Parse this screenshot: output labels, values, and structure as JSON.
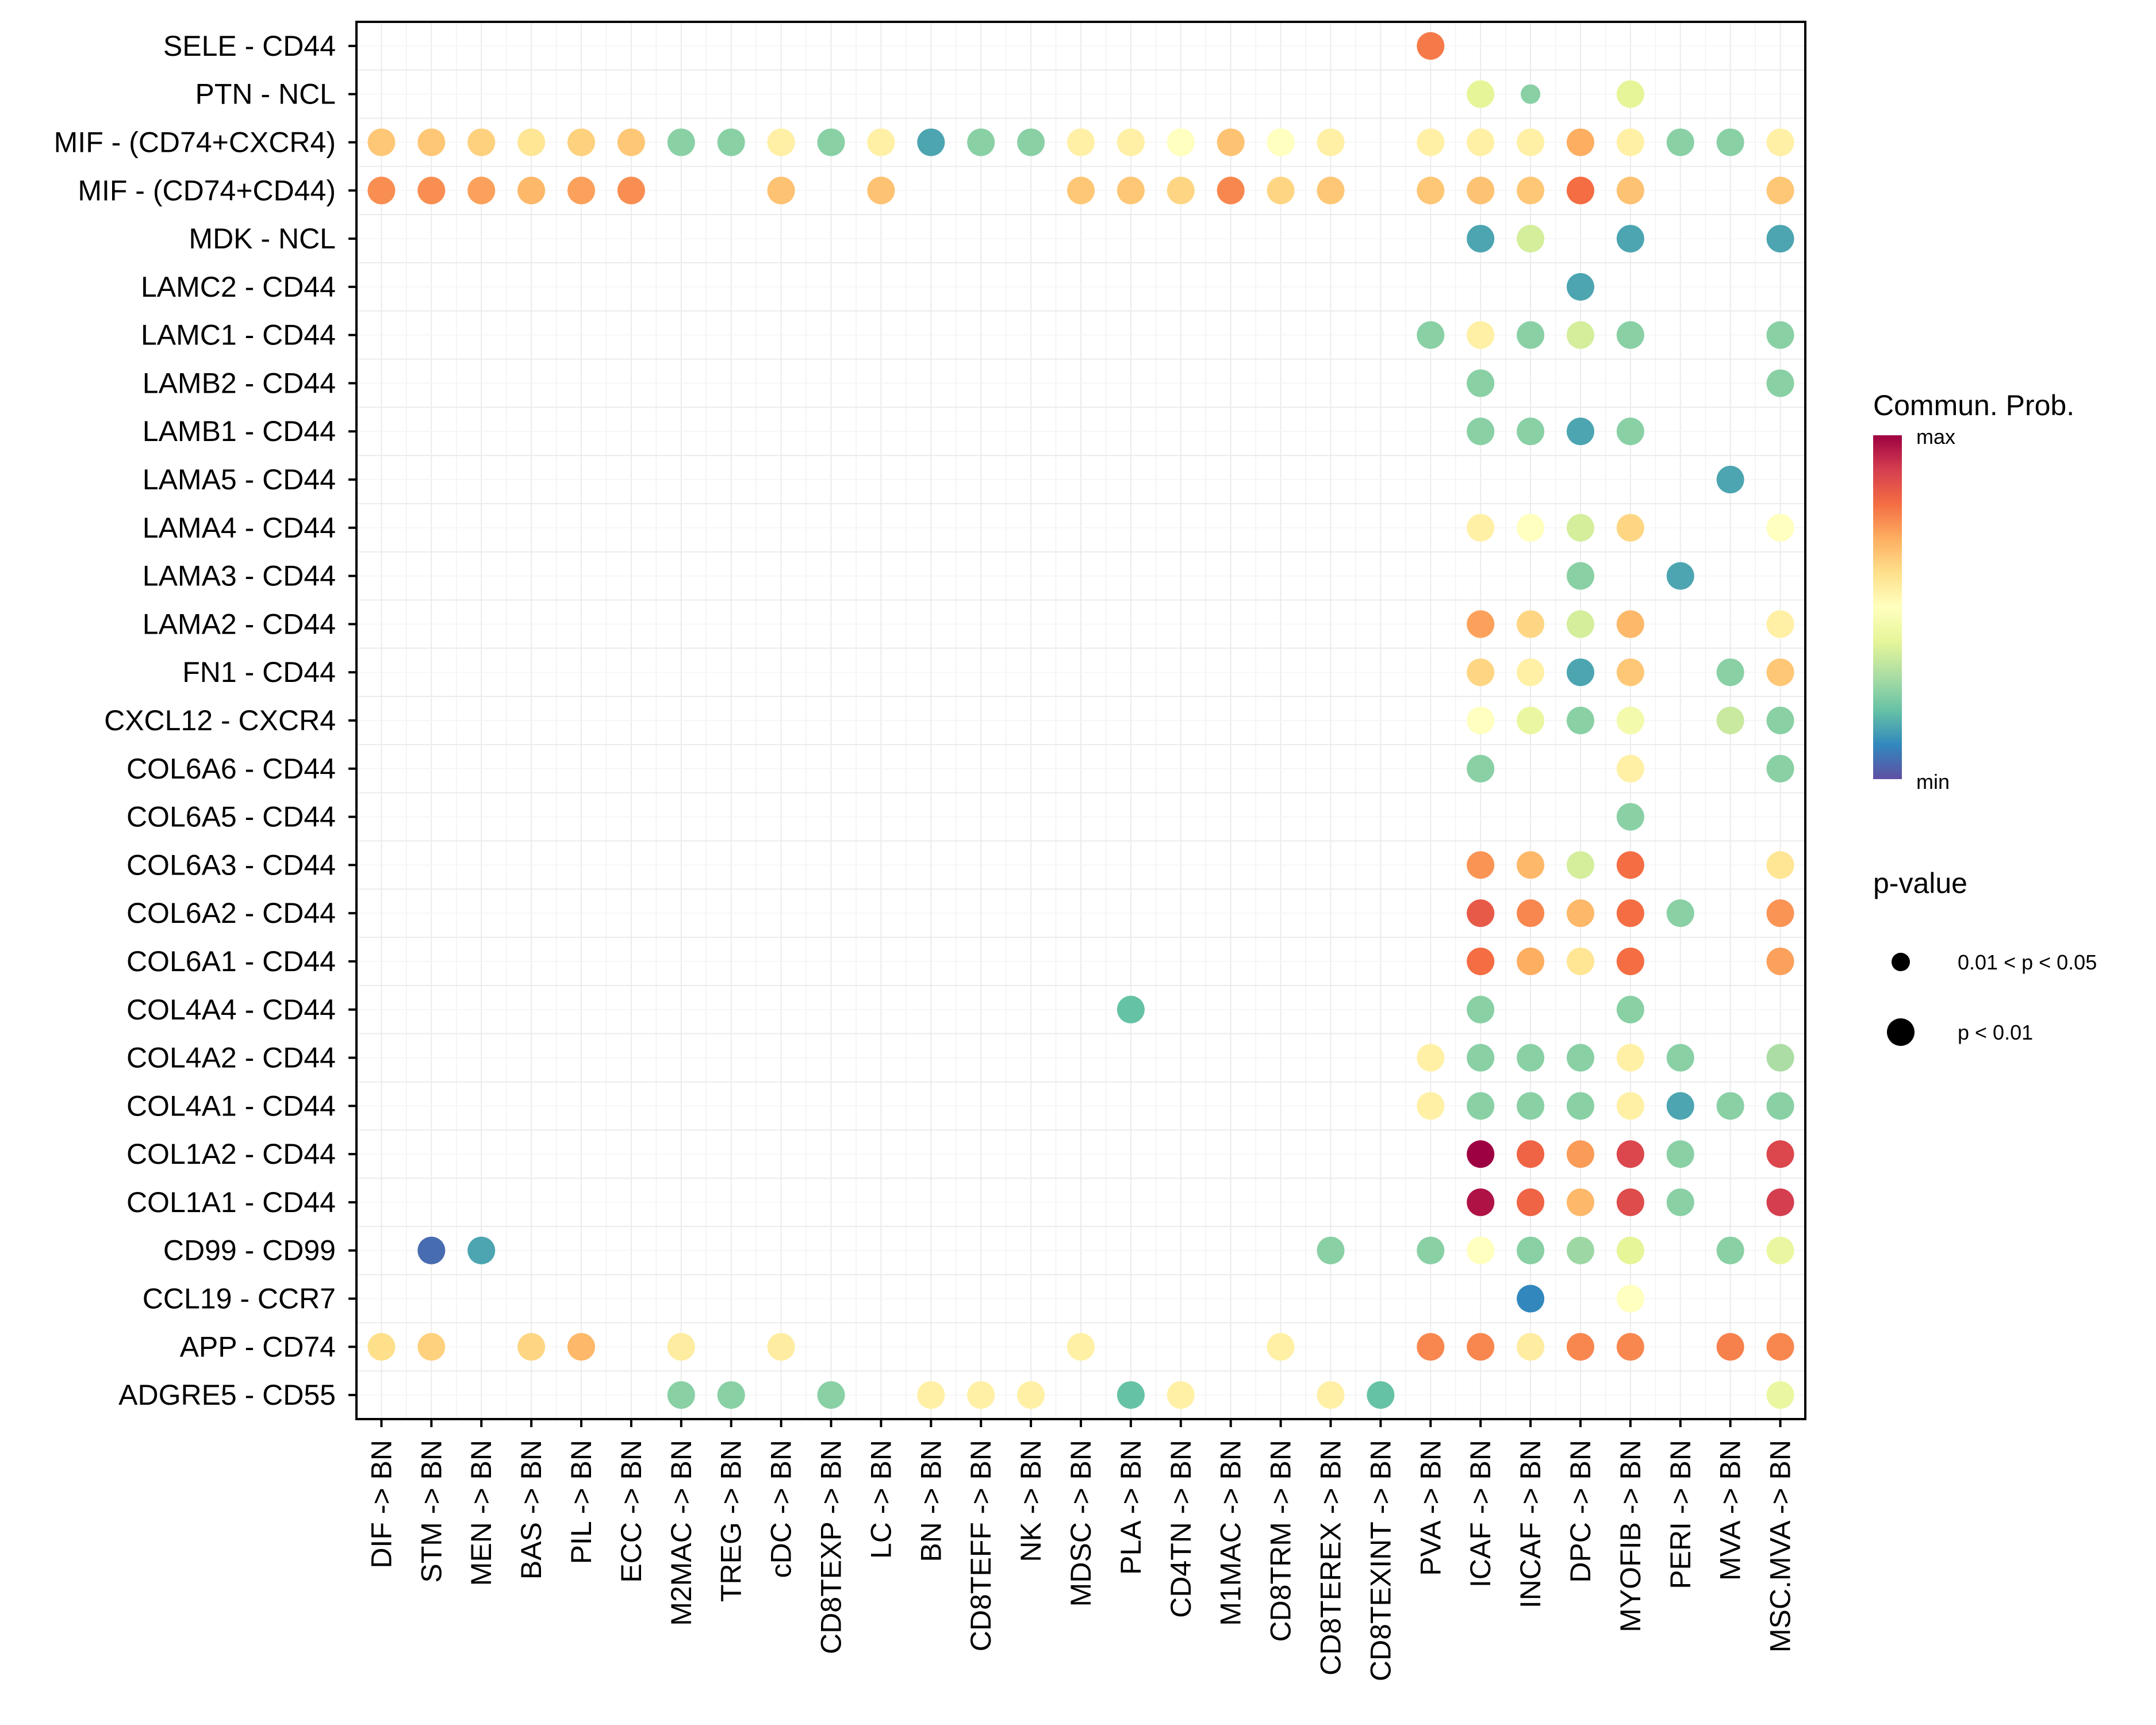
{
  "chart_data": {
    "type": "scatter",
    "subtype": "dot-plot",
    "title": "",
    "xlabel": "",
    "ylabel": "",
    "grid": true,
    "legend_position": "right",
    "x_categories": [
      "DIF -> BN",
      "STM -> BN",
      "MEN -> BN",
      "BAS -> BN",
      "PIL -> BN",
      "ECC -> BN",
      "M2MAC -> BN",
      "TREG -> BN",
      "cDC -> BN",
      "CD8TEXP -> BN",
      "LC -> BN",
      "BN -> BN",
      "CD8TEFF -> BN",
      "NK -> BN",
      "MDSC -> BN",
      "PLA -> BN",
      "CD4TN -> BN",
      "M1MAC -> BN",
      "CD8TRM -> BN",
      "CD8TEREX -> BN",
      "CD8TEXINT -> BN",
      "PVA -> BN",
      "ICAF -> BN",
      "INCAF -> BN",
      "DPC -> BN",
      "MYOFIB -> BN",
      "PERI -> BN",
      "MVA -> BN",
      "MSC.MVA -> BN"
    ],
    "y_categories": [
      "SELE - CD44",
      "PTN - NCL",
      "MIF - (CD74+CXCR4)",
      "MIF - (CD74+CD44)",
      "MDK - NCL",
      "LAMC2 - CD44",
      "LAMC1 - CD44",
      "LAMB2 - CD44",
      "LAMB1 - CD44",
      "LAMA5 - CD44",
      "LAMA4 - CD44",
      "LAMA3 - CD44",
      "LAMA2 - CD44",
      "FN1 - CD44",
      "CXCL12 - CXCR4",
      "COL6A6 - CD44",
      "COL6A5 - CD44",
      "COL6A3 - CD44",
      "COL6A2 - CD44",
      "COL6A1 - CD44",
      "COL4A4 - CD44",
      "COL4A2 - CD44",
      "COL4A1 - CD44",
      "COL1A2 - CD44",
      "COL1A1 - CD44",
      "CD99 - CD99",
      "CCL19 - CCR7",
      "APP - CD74",
      "ADGRE5 - CD55"
    ],
    "value_scale": "normalized communication probability, 0 = min, 1 = max",
    "values": [
      [
        null,
        null,
        null,
        null,
        null,
        null,
        null,
        null,
        null,
        null,
        null,
        null,
        null,
        null,
        null,
        null,
        null,
        null,
        null,
        null,
        null,
        0.78,
        null,
        null,
        null,
        null,
        null,
        null,
        null
      ],
      [
        null,
        null,
        null,
        null,
        null,
        null,
        null,
        null,
        null,
        null,
        null,
        null,
        null,
        null,
        null,
        null,
        null,
        null,
        null,
        null,
        null,
        null,
        0.4,
        0.25,
        null,
        0.4,
        null,
        null,
        null
      ],
      [
        0.65,
        0.65,
        0.63,
        0.58,
        0.63,
        0.65,
        0.25,
        0.25,
        0.55,
        0.25,
        0.55,
        0.15,
        0.25,
        0.25,
        0.55,
        0.55,
        0.5,
        0.66,
        0.5,
        0.55,
        null,
        0.55,
        0.55,
        0.55,
        0.7,
        0.55,
        0.25,
        0.25,
        0.55
      ],
      [
        0.75,
        0.75,
        0.72,
        0.68,
        0.72,
        0.75,
        null,
        null,
        0.66,
        null,
        0.66,
        null,
        null,
        null,
        0.65,
        0.65,
        0.62,
        0.76,
        0.62,
        0.65,
        null,
        0.65,
        0.66,
        0.65,
        0.8,
        0.66,
        null,
        null,
        0.65
      ],
      [
        null,
        null,
        null,
        null,
        null,
        null,
        null,
        null,
        null,
        null,
        null,
        null,
        null,
        null,
        null,
        null,
        null,
        null,
        null,
        null,
        null,
        null,
        0.15,
        0.37,
        null,
        0.15,
        null,
        null,
        0.15
      ],
      [
        null,
        null,
        null,
        null,
        null,
        null,
        null,
        null,
        null,
        null,
        null,
        null,
        null,
        null,
        null,
        null,
        null,
        null,
        null,
        null,
        null,
        null,
        null,
        null,
        0.15,
        null,
        null,
        null,
        null
      ],
      [
        null,
        null,
        null,
        null,
        null,
        null,
        null,
        null,
        null,
        null,
        null,
        null,
        null,
        null,
        null,
        null,
        null,
        null,
        null,
        null,
        null,
        0.25,
        0.55,
        0.25,
        0.37,
        0.25,
        null,
        null,
        0.25
      ],
      [
        null,
        null,
        null,
        null,
        null,
        null,
        null,
        null,
        null,
        null,
        null,
        null,
        null,
        null,
        null,
        null,
        null,
        null,
        null,
        null,
        null,
        null,
        0.25,
        null,
        null,
        null,
        null,
        null,
        0.25
      ],
      [
        null,
        null,
        null,
        null,
        null,
        null,
        null,
        null,
        null,
        null,
        null,
        null,
        null,
        null,
        null,
        null,
        null,
        null,
        null,
        null,
        null,
        null,
        0.25,
        0.25,
        0.15,
        0.25,
        null,
        null,
        null
      ],
      [
        null,
        null,
        null,
        null,
        null,
        null,
        null,
        null,
        null,
        null,
        null,
        null,
        null,
        null,
        null,
        null,
        null,
        null,
        null,
        null,
        null,
        null,
        null,
        null,
        null,
        null,
        null,
        0.15,
        null
      ],
      [
        null,
        null,
        null,
        null,
        null,
        null,
        null,
        null,
        null,
        null,
        null,
        null,
        null,
        null,
        null,
        null,
        null,
        null,
        null,
        null,
        null,
        null,
        0.55,
        0.5,
        0.37,
        0.62,
        null,
        null,
        0.5
      ],
      [
        null,
        null,
        null,
        null,
        null,
        null,
        null,
        null,
        null,
        null,
        null,
        null,
        null,
        null,
        null,
        null,
        null,
        null,
        null,
        null,
        null,
        null,
        null,
        null,
        0.25,
        null,
        0.15,
        null,
        null
      ],
      [
        null,
        null,
        null,
        null,
        null,
        null,
        null,
        null,
        null,
        null,
        null,
        null,
        null,
        null,
        null,
        null,
        null,
        null,
        null,
        null,
        null,
        null,
        0.72,
        0.62,
        0.37,
        0.68,
        null,
        null,
        0.55
      ],
      [
        null,
        null,
        null,
        null,
        null,
        null,
        null,
        null,
        null,
        null,
        null,
        null,
        null,
        null,
        null,
        null,
        null,
        null,
        null,
        null,
        null,
        null,
        0.62,
        0.55,
        0.15,
        0.65,
        null,
        0.25,
        0.65
      ],
      [
        null,
        null,
        null,
        null,
        null,
        null,
        null,
        null,
        null,
        null,
        null,
        null,
        null,
        null,
        null,
        null,
        null,
        null,
        null,
        null,
        null,
        null,
        0.5,
        0.42,
        0.25,
        0.45,
        null,
        0.35,
        0.25
      ],
      [
        null,
        null,
        null,
        null,
        null,
        null,
        null,
        null,
        null,
        null,
        null,
        null,
        null,
        null,
        null,
        null,
        null,
        null,
        null,
        null,
        null,
        null,
        0.25,
        null,
        null,
        0.55,
        null,
        null,
        0.25
      ],
      [
        null,
        null,
        null,
        null,
        null,
        null,
        null,
        null,
        null,
        null,
        null,
        null,
        null,
        null,
        null,
        null,
        null,
        null,
        null,
        null,
        null,
        null,
        null,
        null,
        null,
        0.25,
        null,
        null,
        null
      ],
      [
        null,
        null,
        null,
        null,
        null,
        null,
        null,
        null,
        null,
        null,
        null,
        null,
        null,
        null,
        null,
        null,
        null,
        null,
        null,
        null,
        null,
        null,
        0.74,
        0.68,
        0.37,
        0.8,
        null,
        null,
        0.58
      ],
      [
        null,
        null,
        null,
        null,
        null,
        null,
        null,
        null,
        null,
        null,
        null,
        null,
        null,
        null,
        null,
        null,
        null,
        null,
        null,
        null,
        null,
        null,
        0.84,
        0.76,
        0.68,
        0.8,
        0.25,
        null,
        0.74
      ],
      [
        null,
        null,
        null,
        null,
        null,
        null,
        null,
        null,
        null,
        null,
        null,
        null,
        null,
        null,
        null,
        null,
        null,
        null,
        null,
        null,
        null,
        null,
        0.8,
        0.7,
        0.58,
        0.8,
        null,
        null,
        0.72
      ],
      [
        null,
        null,
        null,
        null,
        null,
        null,
        null,
        null,
        null,
        null,
        null,
        null,
        null,
        null,
        null,
        0.2,
        null,
        null,
        null,
        null,
        null,
        null,
        0.25,
        null,
        null,
        0.25,
        null,
        null,
        null
      ],
      [
        null,
        null,
        null,
        null,
        null,
        null,
        null,
        null,
        null,
        null,
        null,
        null,
        null,
        null,
        null,
        null,
        null,
        null,
        null,
        null,
        null,
        0.55,
        0.25,
        0.25,
        0.25,
        0.55,
        0.25,
        null,
        0.3
      ],
      [
        null,
        null,
        null,
        null,
        null,
        null,
        null,
        null,
        null,
        null,
        null,
        null,
        null,
        null,
        null,
        null,
        null,
        null,
        null,
        null,
        null,
        0.55,
        0.25,
        0.25,
        0.25,
        0.55,
        0.15,
        0.25,
        0.25
      ],
      [
        null,
        null,
        null,
        null,
        null,
        null,
        null,
        null,
        null,
        null,
        null,
        null,
        null,
        null,
        null,
        null,
        null,
        null,
        null,
        null,
        null,
        null,
        1.0,
        0.82,
        0.73,
        0.88,
        0.25,
        null,
        0.88
      ],
      [
        null,
        null,
        null,
        null,
        null,
        null,
        null,
        null,
        null,
        null,
        null,
        null,
        null,
        null,
        null,
        null,
        null,
        null,
        null,
        null,
        null,
        null,
        0.97,
        0.82,
        0.68,
        0.87,
        0.25,
        null,
        0.9
      ],
      [
        null,
        0.05,
        0.15,
        null,
        null,
        null,
        null,
        null,
        null,
        null,
        null,
        null,
        null,
        null,
        null,
        null,
        null,
        null,
        null,
        0.25,
        null,
        0.25,
        0.5,
        0.25,
        0.28,
        0.4,
        null,
        0.25,
        0.42
      ],
      [
        null,
        null,
        null,
        null,
        null,
        null,
        null,
        null,
        null,
        null,
        null,
        null,
        null,
        null,
        null,
        null,
        null,
        null,
        null,
        null,
        null,
        null,
        null,
        0.1,
        null,
        0.5,
        null,
        null,
        null
      ],
      [
        0.6,
        0.63,
        null,
        0.62,
        0.68,
        null,
        0.56,
        null,
        0.56,
        null,
        null,
        null,
        null,
        null,
        0.55,
        null,
        null,
        null,
        0.55,
        null,
        null,
        0.76,
        0.76,
        0.56,
        0.76,
        0.76,
        null,
        0.77,
        0.76
      ],
      [
        null,
        null,
        null,
        null,
        null,
        null,
        0.25,
        0.25,
        null,
        0.25,
        null,
        0.55,
        0.55,
        0.55,
        null,
        0.2,
        0.55,
        null,
        null,
        0.55,
        0.2,
        null,
        null,
        null,
        null,
        null,
        null,
        null,
        0.42
      ]
    ],
    "pvalue_small": [
      [
        1,
        0,
        22
      ]
    ],
    "colorbar": {
      "title": "Commun. Prob.",
      "max_label": "max",
      "min_label": "min",
      "palette": "Spectral (reversed)",
      "colors": [
        "#5E4FA2",
        "#3288BD",
        "#66C2A5",
        "#ABDDA4",
        "#E6F598",
        "#FFFFBF",
        "#FEE08B",
        "#FDAE61",
        "#F46D43",
        "#D53E4F",
        "#9E0142"
      ]
    },
    "size_legend": {
      "title": "p-value",
      "items": [
        {
          "label": "0.01 < p < 0.05",
          "size": "small"
        },
        {
          "label": "p < 0.01",
          "size": "large"
        }
      ]
    }
  }
}
